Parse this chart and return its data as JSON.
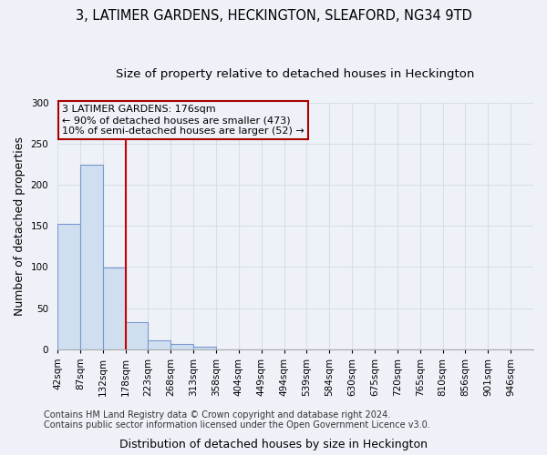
{
  "title": "3, LATIMER GARDENS, HECKINGTON, SLEAFORD, NG34 9TD",
  "subtitle": "Size of property relative to detached houses in Heckington",
  "xlabel": "Distribution of detached houses by size in Heckington",
  "ylabel": "Number of detached properties",
  "bin_labels": [
    "42sqm",
    "87sqm",
    "132sqm",
    "178sqm",
    "223sqm",
    "268sqm",
    "313sqm",
    "358sqm",
    "404sqm",
    "449sqm",
    "494sqm",
    "539sqm",
    "584sqm",
    "630sqm",
    "675sqm",
    "720sqm",
    "765sqm",
    "810sqm",
    "856sqm",
    "901sqm",
    "946sqm"
  ],
  "bar_heights": [
    153,
    225,
    99,
    33,
    11,
    7,
    3,
    0,
    0,
    0,
    0,
    0,
    0,
    0,
    0,
    0,
    0,
    0,
    0,
    0,
    0
  ],
  "bar_color": "#d0dff0",
  "bar_edge_color": "#7799cc",
  "vline_x_bin": 3,
  "vline_color": "#cc0000",
  "annotation_line1": "3 LATIMER GARDENS: 176sqm",
  "annotation_line2": "← 90% of detached houses are smaller (473)",
  "annotation_line3": "10% of semi-detached houses are larger (52) →",
  "annotation_box_color": "#aa0000",
  "ylim": [
    0,
    300
  ],
  "yticks": [
    0,
    50,
    100,
    150,
    200,
    250,
    300
  ],
  "footnote": "Contains HM Land Registry data © Crown copyright and database right 2024.\nContains public sector information licensed under the Open Government Licence v3.0.",
  "bg_color": "#eef2f8",
  "plot_bg_color": "#eef2f8",
  "grid_color": "#d8dde8",
  "title_fontsize": 10.5,
  "subtitle_fontsize": 9.5,
  "ylabel_fontsize": 9,
  "xlabel_fontsize": 9,
  "tick_fontsize": 7.5,
  "footnote_fontsize": 7.0
}
